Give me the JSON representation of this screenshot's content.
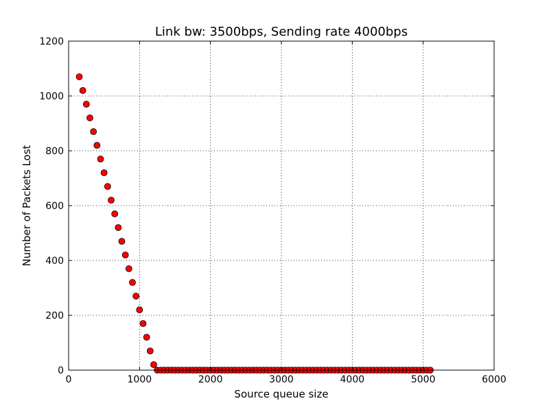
{
  "chart_data": {
    "type": "scatter",
    "title": "Link bw: 3500bps, Sending rate 4000bps",
    "xlabel": "Source queue size",
    "ylabel": "Number of Packets Lost",
    "xlim": [
      0,
      6000
    ],
    "ylim": [
      0,
      1200
    ],
    "xticks": [
      "0",
      "1000",
      "2000",
      "3000",
      "4000",
      "5000",
      "6000"
    ],
    "yticks": [
      "0",
      "200",
      "400",
      "600",
      "800",
      "1000",
      "1200"
    ],
    "grid": true,
    "marker_color": "#ff0000",
    "x": [
      150,
      200,
      250,
      300,
      350,
      400,
      450,
      500,
      550,
      600,
      650,
      700,
      750,
      800,
      850,
      900,
      950,
      1000,
      1050,
      1100,
      1150,
      1200,
      1250,
      1300,
      1350,
      1400,
      1450,
      1500,
      1550,
      1600,
      1650,
      1700,
      1750,
      1800,
      1850,
      1900,
      1950,
      2000,
      2050,
      2100,
      2150,
      2200,
      2250,
      2300,
      2350,
      2400,
      2450,
      2500,
      2550,
      2600,
      2650,
      2700,
      2750,
      2800,
      2850,
      2900,
      2950,
      3000,
      3050,
      3100,
      3150,
      3200,
      3250,
      3300,
      3350,
      3400,
      3450,
      3500,
      3550,
      3600,
      3650,
      3700,
      3750,
      3800,
      3850,
      3900,
      3950,
      4000,
      4050,
      4100,
      4150,
      4200,
      4250,
      4300,
      4350,
      4400,
      4450,
      4500,
      4550,
      4600,
      4650,
      4700,
      4750,
      4800,
      4850,
      4900,
      4950,
      5000,
      5050,
      5100
    ],
    "y": [
      1070,
      1020,
      970,
      920,
      870,
      820,
      770,
      720,
      670,
      620,
      570,
      520,
      470,
      420,
      370,
      320,
      270,
      220,
      170,
      120,
      70,
      20,
      0,
      0,
      0,
      0,
      0,
      0,
      0,
      0,
      0,
      0,
      0,
      0,
      0,
      0,
      0,
      0,
      0,
      0,
      0,
      0,
      0,
      0,
      0,
      0,
      0,
      0,
      0,
      0,
      0,
      0,
      0,
      0,
      0,
      0,
      0,
      0,
      0,
      0,
      0,
      0,
      0,
      0,
      0,
      0,
      0,
      0,
      0,
      0,
      0,
      0,
      0,
      0,
      0,
      0,
      0,
      0,
      0,
      0,
      0,
      0,
      0,
      0,
      0,
      0,
      0,
      0,
      0,
      0,
      0,
      0,
      0,
      0,
      0,
      0,
      0,
      0,
      0,
      0
    ]
  }
}
